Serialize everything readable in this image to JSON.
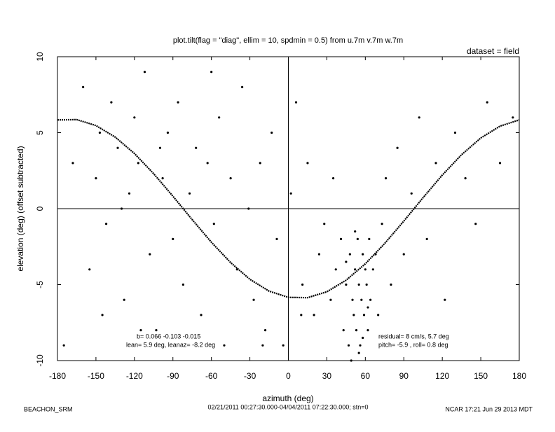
{
  "chart_data": {
    "type": "scatter",
    "title": "plot.tilt(flag = \"diag\", ellim = 10, spdmin = 0.5) from u.7m v.7m w.7m",
    "subtitle": "dataset = field",
    "x_label": "azimuth (deg)",
    "y_label": "elevation (deg)  (offset subtracted)",
    "footer_left": "BEACHON_SRM",
    "footer_center": "02/21/2011 00:27:30.000-04/04/2011 07:22:30.000; stn=0",
    "footer_right": "NCAR 17:21 Jun 29 2013 MDT",
    "annotations": [
      "b=  0.066 -0.103 -0.015",
      "lean= 5.9 deg, leanaz= -8.2 deg",
      "residual= 8 cm/s, 5.7 deg",
      "pitch= -5.9 , roll=  0.8 deg"
    ],
    "xlim": [
      -180,
      180
    ],
    "ylim": [
      -10,
      10
    ],
    "xticks": [
      -180,
      -150,
      -120,
      -90,
      -60,
      -30,
      0,
      30,
      60,
      90,
      120,
      150,
      180
    ],
    "yticks": [
      -10,
      -5,
      0,
      5,
      10
    ],
    "zero_lines": true,
    "series": [
      {
        "color": "#000000",
        "mode": "points",
        "x": [
          -175,
          -168,
          -160,
          -155,
          -150,
          -147,
          -142,
          -138,
          -133,
          -128,
          -124,
          -120,
          -117,
          -112,
          -108,
          -103,
          -98,
          -94,
          -90,
          -86,
          -82,
          -77,
          -72,
          -68,
          -63,
          -58,
          -54,
          -50,
          -45,
          -40,
          -36,
          -31,
          -27,
          -22,
          -18,
          -13,
          -9,
          -4,
          2,
          6,
          11,
          15,
          20,
          24,
          28,
          33,
          37,
          41,
          43,
          45,
          47,
          48,
          50,
          51,
          52,
          53,
          54,
          55,
          56,
          57,
          58,
          59,
          60,
          61,
          62,
          63,
          64,
          66,
          68,
          70,
          73,
          76,
          80,
          85,
          90,
          96,
          102,
          108,
          115,
          122,
          130,
          138,
          146,
          155,
          165,
          175,
          -145,
          -130,
          -115,
          -100,
          -60,
          -20,
          10,
          35,
          49,
          55,
          58,
          62,
          45,
          52
        ],
        "values": [
          -9,
          3,
          8,
          -4,
          2,
          5,
          -1,
          7,
          4,
          -6,
          1,
          6,
          3,
          9,
          -3,
          -8,
          2,
          5,
          -2,
          7,
          -5,
          1,
          4,
          -7,
          3,
          -1,
          6,
          -9,
          2,
          -4,
          8,
          0,
          -6,
          3,
          -8,
          5,
          -2,
          -9,
          1,
          7,
          -5,
          3,
          -7,
          -3,
          -1,
          -6,
          -4,
          -2,
          -8,
          -5,
          -9,
          -3,
          -6,
          -7,
          -4,
          -8,
          -2,
          -5,
          -9,
          -6,
          -3,
          -7,
          -4,
          -5,
          -8,
          -2,
          -6,
          -4,
          -3,
          -7,
          -1,
          2,
          -5,
          4,
          -3,
          1,
          6,
          -2,
          3,
          -6,
          5,
          2,
          -1,
          7,
          3,
          6,
          -7,
          0,
          -8,
          4,
          9,
          -9,
          -7,
          2,
          -10,
          -9.5,
          -8.5,
          -6.5,
          -3.5,
          -1.5
        ]
      },
      {
        "color": "#000000",
        "mode": "curve",
        "x": [
          -180,
          -165,
          -150,
          -135,
          -120,
          -105,
          -90,
          -75,
          -60,
          -45,
          -30,
          -15,
          0,
          15,
          30,
          45,
          60,
          75,
          90,
          105,
          120,
          135,
          150,
          165,
          180
        ],
        "values": [
          5.84,
          5.86,
          5.47,
          4.71,
          3.63,
          2.3,
          0.82,
          -0.72,
          -2.21,
          -3.55,
          -4.65,
          -5.43,
          -5.84,
          -5.86,
          -5.47,
          -4.71,
          -3.63,
          -2.3,
          -0.82,
          0.72,
          2.21,
          3.55,
          4.65,
          5.43,
          5.84
        ]
      }
    ]
  }
}
